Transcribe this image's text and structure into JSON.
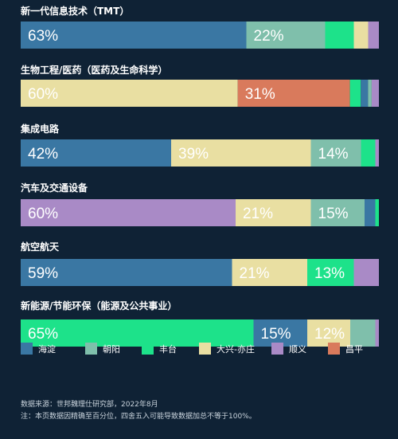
{
  "chart_data": {
    "type": "bar",
    "orientation": "horizontal",
    "stacked": true,
    "percent": true,
    "xlim": [
      0,
      100
    ],
    "legend_position": "bottom",
    "categories": [
      "新一代信息技术（TMT）",
      "生物工程/医药（医药及生命科学）",
      "集成电路",
      "汽车及交通设备",
      "航空航天",
      "新能源/节能环保（能源及公共事业）"
    ],
    "series": [
      {
        "name": "海淀",
        "color": "#3a77a3",
        "values": [
          63,
          0,
          42,
          0,
          59,
          15
        ]
      },
      {
        "name": "朝阳",
        "color": "#7fbfab",
        "values": [
          22,
          1,
          14,
          15,
          0,
          7
        ]
      },
      {
        "name": "丰台",
        "color": "#1de28a",
        "values": [
          8,
          3,
          4,
          1,
          13,
          65
        ]
      },
      {
        "name": "大兴-亦庄",
        "color": "#e9dfa2",
        "values": [
          4,
          60,
          39,
          21,
          21,
          12
        ]
      },
      {
        "name": "顺义",
        "color": "#a98ac6",
        "values": [
          3,
          2,
          1,
          60,
          7,
          1
        ]
      },
      {
        "name": "昌平",
        "color": "#d97a5c",
        "values": [
          0,
          31,
          0,
          0,
          0,
          0
        ]
      }
    ],
    "extra_segments": [
      {
        "category_index": 1,
        "color": "#3a77a3",
        "value": 2,
        "after_series": "丰台"
      },
      {
        "category_index": 3,
        "color": "#3a77a3",
        "value": 3,
        "after_series": "朝阳"
      }
    ],
    "order": [
      [
        "海淀",
        "朝阳",
        "丰台",
        "大兴-亦庄",
        "顺义"
      ],
      [
        "大兴-亦庄",
        "昌平",
        "丰台",
        "海淀",
        "朝阳",
        "顺义"
      ],
      [
        "海淀",
        "大兴-亦庄",
        "朝阳",
        "丰台",
        "顺义"
      ],
      [
        "顺义",
        "大兴-亦庄",
        "朝阳",
        "海淀",
        "丰台"
      ],
      [
        "海淀",
        "大兴-亦庄",
        "丰台",
        "顺义"
      ],
      [
        "丰台",
        "海淀",
        "大兴-亦庄",
        "朝阳",
        "顺义"
      ]
    ],
    "data_labels": [
      [
        [
          "海淀",
          "63%"
        ],
        [
          "朝阳",
          "22%"
        ]
      ],
      [
        [
          "大兴-亦庄",
          "60%"
        ],
        [
          "昌平",
          "31%"
        ]
      ],
      [
        [
          "海淀",
          "42%"
        ],
        [
          "大兴-亦庄",
          "39%"
        ],
        [
          "朝阳",
          "14%"
        ]
      ],
      [
        [
          "顺义",
          "60%"
        ],
        [
          "大兴-亦庄",
          "21%"
        ],
        [
          "朝阳",
          "15%"
        ]
      ],
      [
        [
          "海淀",
          "59%"
        ],
        [
          "大兴-亦庄",
          "21%"
        ],
        [
          "丰台",
          "13%"
        ]
      ],
      [
        [
          "丰台",
          "65%"
        ],
        [
          "海淀",
          "15%"
        ],
        [
          "大兴-亦庄",
          "12%"
        ]
      ]
    ]
  },
  "footnote": {
    "source": "数据来源：世邦魏理仕研究部，2022年8月",
    "note": "注：本页数据因精确至百分位，四舍五入可能导致数据加总不等于100%。"
  }
}
